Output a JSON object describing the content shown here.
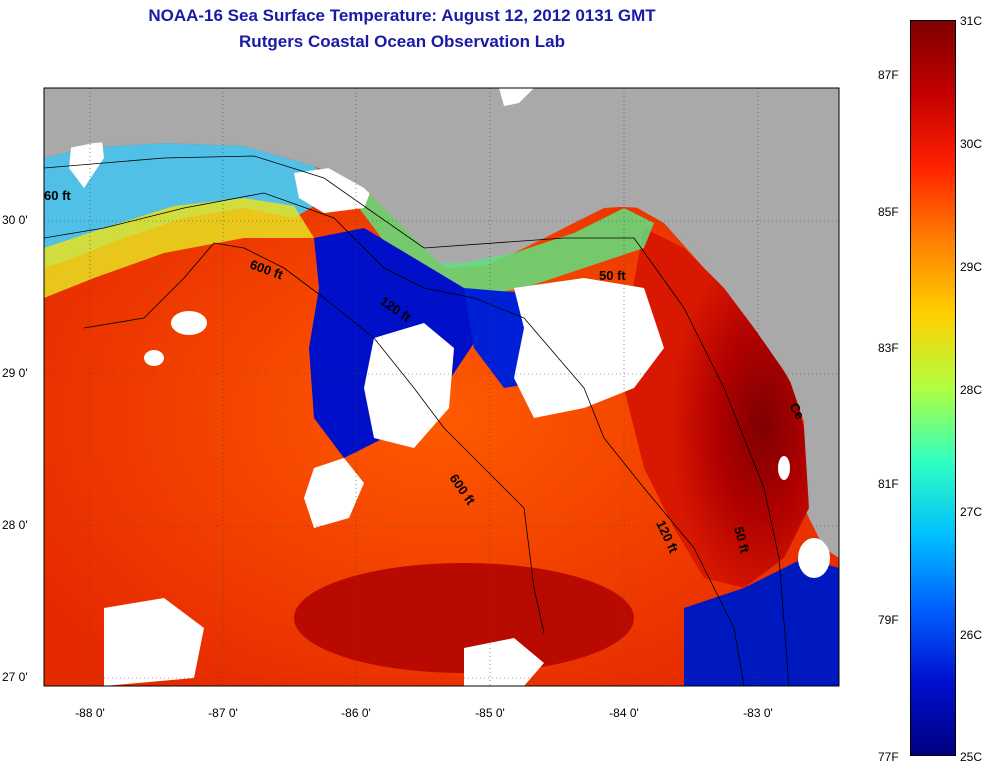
{
  "title": {
    "line1": "NOAA-16 Sea Surface Temperature:  August 12, 2012 0131 GMT",
    "line2": "Rutgers Coastal Ocean Observation Lab"
  },
  "axes": {
    "latitude_labels": [
      "30 0'",
      "29 0'",
      "28 0'",
      "27 0'"
    ],
    "longitude_labels": [
      "-88 0'",
      "-87 0'",
      "-86 0'",
      "-85 0'",
      "-84 0'",
      "-83 0'"
    ]
  },
  "contours": {
    "c600a": "600 ft",
    "c120a": "120 ft",
    "c600b": "600 ft",
    "c120b": "120 ft",
    "c50": "50 ft",
    "c60": "60 ft",
    "c50b": "50 ft",
    "cCe": "Ce"
  },
  "colorbar": {
    "celsius": [
      "31C",
      "30C",
      "29C",
      "28C",
      "27C",
      "26C",
      "25C"
    ],
    "fahrenheit": [
      "87F",
      "85F",
      "83F",
      "81F",
      "79F",
      "77F"
    ],
    "colors": [
      "#7f0000",
      "#c40000",
      "#ff2200",
      "#ff8000",
      "#ffd000",
      "#b0ff40",
      "#30ffc0",
      "#00c0ff",
      "#0060ff",
      "#0010d0",
      "#000080"
    ]
  }
}
